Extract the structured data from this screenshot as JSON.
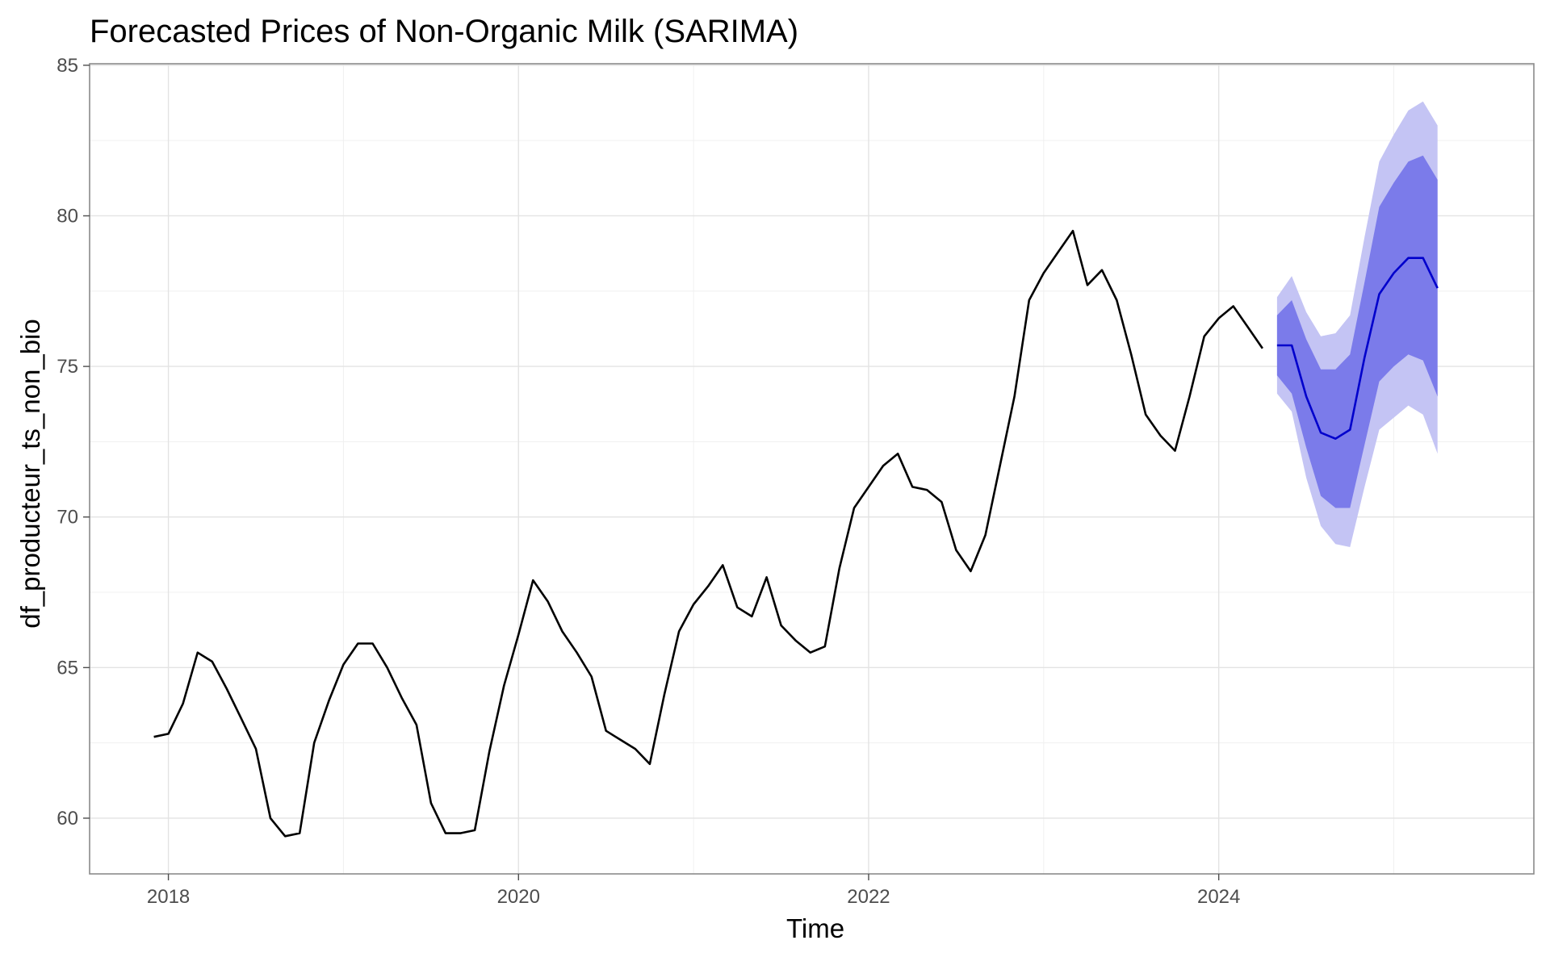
{
  "chart_data": {
    "type": "line",
    "title": "Forecasted Prices of Non-Organic Milk (SARIMA)",
    "xlabel": "Time",
    "ylabel": "df_producteur_ts_non_bio",
    "xlim": [
      2017.55,
      2025.8
    ],
    "ylim": [
      58.15,
      85.05
    ],
    "x_ticks": [
      2018,
      2020,
      2022,
      2024
    ],
    "x_tick_labels": [
      "2018",
      "2020",
      "2022",
      "2024"
    ],
    "y_ticks": [
      60,
      65,
      70,
      75,
      80,
      85
    ],
    "y_tick_labels": [
      "60",
      "65",
      "70",
      "75",
      "80",
      "85"
    ],
    "grid": true,
    "colors": {
      "history": "#000000",
      "forecast": "#0000cc",
      "band_80": "#7b7bea",
      "band_95": "#c4c4f4"
    },
    "series": [
      {
        "role": "history",
        "x": [
          2017.917,
          2018.0,
          2018.083,
          2018.167,
          2018.25,
          2018.333,
          2018.417,
          2018.5,
          2018.583,
          2018.667,
          2018.75,
          2018.833,
          2018.917,
          2019.0,
          2019.083,
          2019.167,
          2019.25,
          2019.333,
          2019.417,
          2019.5,
          2019.583,
          2019.667,
          2019.75,
          2019.833,
          2019.917,
          2020.0,
          2020.083,
          2020.167,
          2020.25,
          2020.333,
          2020.417,
          2020.5,
          2020.583,
          2020.667,
          2020.75,
          2020.833,
          2020.917,
          2021.0,
          2021.083,
          2021.167,
          2021.25,
          2021.333,
          2021.417,
          2021.5,
          2021.583,
          2021.667,
          2021.75,
          2021.833,
          2021.917,
          2022.0,
          2022.083,
          2022.167,
          2022.25,
          2022.333,
          2022.417,
          2022.5,
          2022.583,
          2022.667,
          2022.75,
          2022.833,
          2022.917,
          2023.0,
          2023.083,
          2023.167,
          2023.25,
          2023.333,
          2023.417,
          2023.5,
          2023.583,
          2023.667,
          2023.75,
          2023.833,
          2023.917,
          2024.0,
          2024.083,
          2024.167,
          2024.25
        ],
        "values": [
          62.7,
          62.8,
          63.8,
          65.5,
          65.2,
          64.3,
          63.3,
          62.3,
          60.0,
          59.4,
          59.5,
          62.5,
          63.9,
          65.1,
          65.8,
          65.8,
          65.0,
          64.0,
          63.1,
          60.5,
          59.5,
          59.5,
          59.6,
          62.2,
          64.4,
          66.1,
          67.9,
          67.2,
          66.2,
          65.5,
          64.7,
          62.9,
          62.6,
          62.3,
          61.8,
          64.1,
          66.2,
          67.1,
          67.7,
          68.4,
          67.0,
          66.7,
          68.0,
          66.4,
          65.9,
          65.5,
          65.7,
          68.3,
          70.3,
          71.0,
          71.7,
          72.1,
          71.0,
          70.9,
          70.5,
          68.9,
          68.2,
          69.4,
          71.7,
          74.0,
          77.2,
          78.1,
          78.8,
          79.5,
          77.7,
          78.2,
          77.2,
          75.4,
          73.4,
          72.7,
          72.2,
          74.0,
          76.0,
          76.6,
          77.0,
          76.3,
          75.6
        ]
      },
      {
        "role": "forecast",
        "x": [
          2024.333,
          2024.417,
          2024.5,
          2024.583,
          2024.667,
          2024.75,
          2024.833,
          2024.917,
          2025.0,
          2025.083,
          2025.167,
          2025.25
        ],
        "values": [
          75.7,
          75.7,
          74.0,
          72.8,
          72.6,
          72.9,
          75.3,
          77.4,
          78.1,
          78.6,
          78.6,
          77.6
        ],
        "lo80": [
          74.7,
          74.1,
          72.3,
          70.7,
          70.3,
          70.3,
          72.4,
          74.5,
          75.0,
          75.4,
          75.2,
          74.0
        ],
        "hi80": [
          76.7,
          77.2,
          75.9,
          74.9,
          74.9,
          75.4,
          77.8,
          80.3,
          81.1,
          81.8,
          82.0,
          81.2
        ],
        "lo95": [
          74.1,
          73.5,
          71.3,
          69.7,
          69.1,
          69.0,
          71.0,
          72.9,
          73.3,
          73.7,
          73.4,
          72.1
        ],
        "hi95": [
          77.3,
          78.0,
          76.8,
          76.0,
          76.1,
          76.7,
          79.3,
          81.8,
          82.7,
          83.5,
          83.8,
          83.0
        ]
      }
    ]
  }
}
